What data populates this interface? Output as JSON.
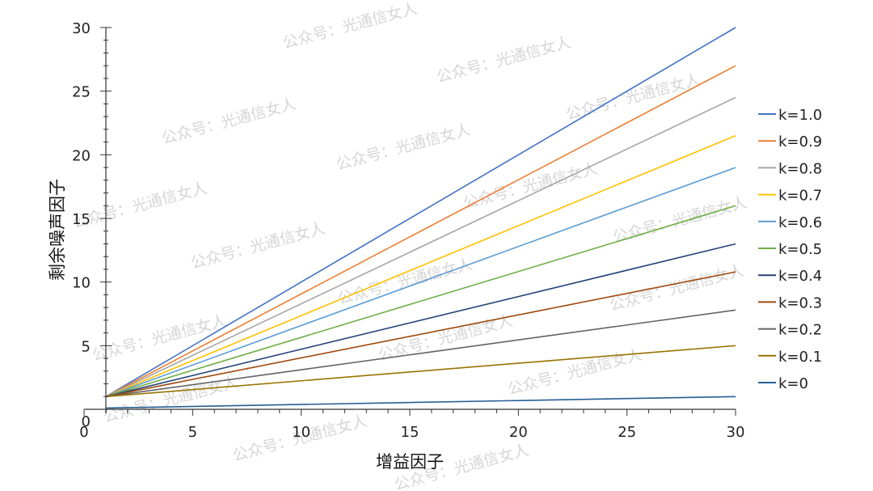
{
  "chart_data": {
    "type": "line",
    "title": "",
    "xlabel": "增益因子",
    "ylabel": "剩余噪声因子",
    "xlim": [
      0,
      30
    ],
    "ylim": [
      0,
      30
    ],
    "x_ticks": [
      "0",
      "5",
      "10",
      "15",
      "20",
      "25",
      "30"
    ],
    "y_ticks": [
      "0",
      "5",
      "10",
      "15",
      "20",
      "25",
      "30"
    ],
    "grid": false,
    "legend_position": "right",
    "series": [
      {
        "name": "k=1.0",
        "color": "#4472c4",
        "x": [
          1,
          30
        ],
        "y": [
          1,
          30
        ]
      },
      {
        "name": "k=0.9",
        "color": "#ed7d31",
        "x": [
          1,
          30
        ],
        "y": [
          1,
          27
        ]
      },
      {
        "name": "k=0.8",
        "color": "#a5a5a5",
        "x": [
          1,
          30
        ],
        "y": [
          1,
          24.5
        ]
      },
      {
        "name": "k=0.7",
        "color": "#ffc000",
        "x": [
          1,
          30
        ],
        "y": [
          1,
          21.5
        ]
      },
      {
        "name": "k=0.6",
        "color": "#5b9bd5",
        "x": [
          1,
          30
        ],
        "y": [
          1,
          19
        ]
      },
      {
        "name": "k=0.5",
        "color": "#70ad47",
        "x": [
          1,
          30
        ],
        "y": [
          1,
          16
        ]
      },
      {
        "name": "k=0.4",
        "color": "#264478",
        "x": [
          1,
          30
        ],
        "y": [
          1,
          13
        ]
      },
      {
        "name": "k=0.3",
        "color": "#9e480e",
        "x": [
          1,
          30
        ],
        "y": [
          1,
          10.8
        ]
      },
      {
        "name": "k=0.2",
        "color": "#636363",
        "x": [
          1,
          30
        ],
        "y": [
          1,
          7.8
        ]
      },
      {
        "name": "k=0.1",
        "color": "#997300",
        "x": [
          1,
          30
        ],
        "y": [
          1,
          5
        ]
      },
      {
        "name": "k=0",
        "color": "#255e91",
        "x": [
          1,
          30
        ],
        "y": [
          0.1,
          1
        ]
      }
    ]
  },
  "watermark": {
    "text": "公众号：光通信女人"
  }
}
